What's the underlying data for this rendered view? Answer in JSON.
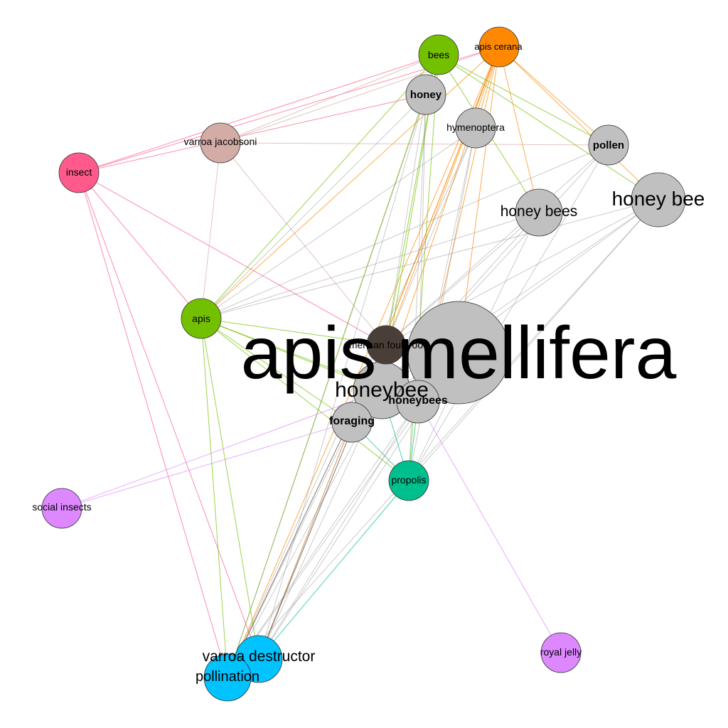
{
  "colors": {
    "background": "#ffffff",
    "gray": "#c0c0c0",
    "green": "#73c000",
    "orange": "#ff8800",
    "pink": "#ff5a8a",
    "tan": "#d4aca6",
    "dark": "#4a3f38",
    "teal": "#00bf8e",
    "cyan": "#00c3ff",
    "violet": "#dd88ff"
  },
  "nodes": [
    {
      "id": "apis-mellifera",
      "label": "apis mellifera",
      "group": "gray",
      "weight": 10
    },
    {
      "id": "honeybee",
      "label": "honeybee",
      "group": "gray",
      "weight": 4
    },
    {
      "id": "honeybees",
      "label": "honeybees",
      "group": "gray",
      "weight": 2.5
    },
    {
      "id": "american-foulbrood",
      "label": "american foulbrood",
      "group": "dark",
      "weight": 2
    },
    {
      "id": "foraging",
      "label": "foraging",
      "group": "gray",
      "weight": 2
    },
    {
      "id": "apis",
      "label": "apis",
      "group": "green",
      "weight": 2
    },
    {
      "id": "propolis",
      "label": "propolis",
      "group": "teal",
      "weight": 2
    },
    {
      "id": "honey-bee",
      "label": "honey bee",
      "group": "gray",
      "weight": 3
    },
    {
      "id": "honey-bees",
      "label": "honey bees",
      "group": "gray",
      "weight": 2.5
    },
    {
      "id": "pollen",
      "label": "pollen",
      "group": "gray",
      "weight": 2
    },
    {
      "id": "hymenoptera",
      "label": "hymenoptera",
      "group": "gray",
      "weight": 2
    },
    {
      "id": "honey",
      "label": "honey",
      "group": "gray",
      "weight": 2
    },
    {
      "id": "bees",
      "label": "bees",
      "group": "green",
      "weight": 2
    },
    {
      "id": "apis-cerana",
      "label": "apis cerana",
      "group": "orange",
      "weight": 2
    },
    {
      "id": "varroa-jacobsoni",
      "label": "varroa jacobsoni",
      "group": "tan",
      "weight": 2
    },
    {
      "id": "insect",
      "label": "insect",
      "group": "pink",
      "weight": 2
    },
    {
      "id": "social-insects",
      "label": "social insects",
      "group": "violet",
      "weight": 2
    },
    {
      "id": "royal-jelly",
      "label": "royal jelly",
      "group": "violet",
      "weight": 2
    },
    {
      "id": "varroa-destructor",
      "label": "varroa destructor",
      "group": "cyan",
      "weight": 2.5
    },
    {
      "id": "pollination",
      "label": "pollination",
      "group": "cyan",
      "weight": 2.5
    }
  ],
  "edges": [
    [
      "insect",
      "apis-cerana"
    ],
    [
      "insect",
      "bees"
    ],
    [
      "insect",
      "honey"
    ],
    [
      "insect",
      "apis"
    ],
    [
      "insect",
      "american-foulbrood"
    ],
    [
      "insect",
      "varroa-destructor"
    ],
    [
      "insect",
      "pollination"
    ],
    [
      "varroa-jacobsoni",
      "apis-cerana"
    ],
    [
      "varroa-jacobsoni",
      "bees"
    ],
    [
      "varroa-jacobsoni",
      "apis"
    ],
    [
      "varroa-jacobsoni",
      "american-foulbrood"
    ],
    [
      "varroa-jacobsoni",
      "pollen"
    ],
    [
      "apis-cerana",
      "apis"
    ],
    [
      "apis-cerana",
      "american-foulbrood"
    ],
    [
      "apis-cerana",
      "pollen"
    ],
    [
      "apis-cerana",
      "honey-bees"
    ],
    [
      "apis-cerana",
      "honey-bee"
    ],
    [
      "apis-cerana",
      "hymenoptera"
    ],
    [
      "apis-cerana",
      "honeybee"
    ],
    [
      "apis-cerana",
      "apis-mellifera"
    ],
    [
      "apis-cerana",
      "foraging"
    ],
    [
      "apis-cerana",
      "pollination"
    ],
    [
      "apis-cerana",
      "varroa-destructor"
    ],
    [
      "apis-cerana",
      "honeybees"
    ],
    [
      "bees",
      "apis"
    ],
    [
      "bees",
      "pollen"
    ],
    [
      "bees",
      "honey-bees"
    ],
    [
      "bees",
      "honey-bee"
    ],
    [
      "bees",
      "american-foulbrood"
    ],
    [
      "bees",
      "propolis"
    ],
    [
      "bees",
      "honeybee"
    ],
    [
      "bees",
      "pollination"
    ],
    [
      "honey",
      "apis"
    ],
    [
      "honey",
      "propolis"
    ],
    [
      "honey",
      "varroa-destructor"
    ],
    [
      "honey",
      "pollination"
    ],
    [
      "honey",
      "honeybees"
    ],
    [
      "honey",
      "american-foulbrood"
    ],
    [
      "hymenoptera",
      "apis"
    ],
    [
      "hymenoptera",
      "honeybees"
    ],
    [
      "hymenoptera",
      "american-foulbrood"
    ],
    [
      "hymenoptera",
      "propolis"
    ],
    [
      "hymenoptera",
      "pollination"
    ],
    [
      "pollen",
      "apis"
    ],
    [
      "pollen",
      "honeybee"
    ],
    [
      "pollen",
      "propolis"
    ],
    [
      "pollen",
      "american-foulbrood"
    ],
    [
      "honey-bee",
      "apis"
    ],
    [
      "honey-bee",
      "honeybee"
    ],
    [
      "honey-bee",
      "american-foulbrood"
    ],
    [
      "honey-bee",
      "foraging"
    ],
    [
      "honey-bee",
      "propolis"
    ],
    [
      "honey-bee",
      "pollination"
    ],
    [
      "honey-bees",
      "apis"
    ],
    [
      "honey-bees",
      "foraging"
    ],
    [
      "honey-bees",
      "american-foulbrood"
    ],
    [
      "honey-bees",
      "propolis"
    ],
    [
      "apis",
      "american-foulbrood"
    ],
    [
      "apis",
      "propolis"
    ],
    [
      "apis",
      "varroa-destructor"
    ],
    [
      "apis",
      "pollination"
    ],
    [
      "apis",
      "foraging"
    ],
    [
      "apis",
      "honeybee"
    ],
    [
      "apis",
      "honeybees"
    ],
    [
      "social-insects",
      "honeybee"
    ],
    [
      "social-insects",
      "honeybees"
    ],
    [
      "royal-jelly",
      "honeybees"
    ],
    [
      "propolis",
      "foraging"
    ],
    [
      "propolis",
      "varroa-destructor"
    ],
    [
      "propolis",
      "honeybee"
    ],
    [
      "propolis",
      "honeybees"
    ],
    [
      "foraging",
      "varroa-destructor"
    ],
    [
      "foraging",
      "pollination"
    ],
    [
      "honeybee",
      "varroa-destructor"
    ],
    [
      "honeybee",
      "pollination"
    ],
    [
      "apis-mellifera",
      "varroa-destructor"
    ],
    [
      "apis-mellifera",
      "pollination"
    ],
    [
      "american-foulbrood",
      "varroa-destructor"
    ],
    [
      "american-foulbrood",
      "pollination"
    ],
    [
      "honeybees",
      "varroa-destructor"
    ],
    [
      "honeybees",
      "pollination"
    ]
  ]
}
